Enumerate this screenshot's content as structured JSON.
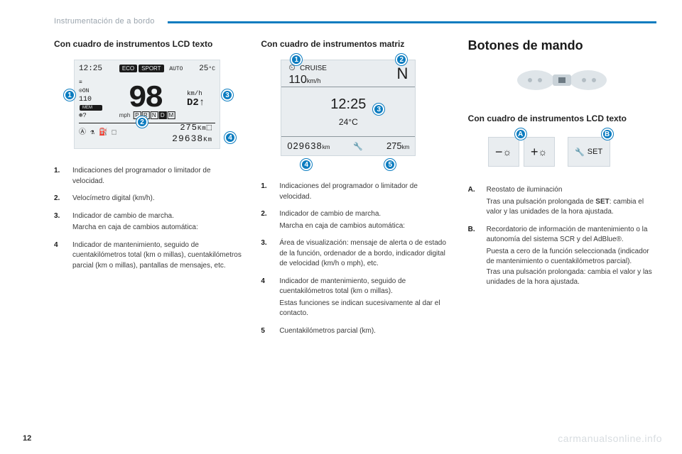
{
  "header": {
    "title": "Instrumentación de a bordo"
  },
  "page_number": "12",
  "watermark": "carmanualsonline.info",
  "col1": {
    "subheading": "Con cuadro de instrumentos LCD texto",
    "lcd": {
      "clock": "12:25",
      "eco": "ECO",
      "sport": "SPORT",
      "auto": "AUTO",
      "temp": "25",
      "temp_unit": "°C",
      "on": "ON",
      "speed": "98",
      "speed_unit1": "km/h",
      "speed_unit2": "mph",
      "mem_speed": "110",
      "mem_label": "MEM",
      "gear_d": "D",
      "gear_num": "2",
      "gear_arrow": "↑",
      "gears": [
        "P",
        "R",
        "N",
        "D",
        "M"
      ],
      "gear_active_index": 3,
      "trip_a": "275",
      "trip_a_unit": "Km",
      "odo": "29638",
      "odo_unit": "Km"
    },
    "items": [
      {
        "n": "1.",
        "text": "Indicaciones del programador o limitador de velocidad."
      },
      {
        "n": "2.",
        "text": "Velocímetro digital (km/h)."
      },
      {
        "n": "3.",
        "text": "Indicador de cambio de marcha.",
        "sub": "Marcha en caja de cambios automática:"
      },
      {
        "n": "4",
        "text": "Indicador de mantenimiento, seguido de cuentakilómetros total (km o millas), cuentakilómetros parcial (km o millas), pantallas de mensajes, etc."
      }
    ]
  },
  "col2": {
    "subheading": "Con cuadro de instrumentos matriz",
    "matrix": {
      "cruise_label": "CRUISE",
      "cruise_value": "110",
      "cruise_unit": "km/h",
      "gear": "N",
      "time": "12:25",
      "temp": "24°C",
      "odo": "029638",
      "odo_unit": "km",
      "trip": "275",
      "trip_unit": "km"
    },
    "items": [
      {
        "n": "1.",
        "text": "Indicaciones del programador o limitador de velocidad."
      },
      {
        "n": "2.",
        "text": "Indicador de cambio de marcha.",
        "sub": "Marcha en caja de cambios automática:"
      },
      {
        "n": "3.",
        "text": "Área de visualización: mensaje de alerta o de estado de la función, ordenador de a bordo, indicador digital de velocidad (km/h o mph), etc."
      },
      {
        "n": "4",
        "text": "Indicador de mantenimiento, seguido de cuentakilómetros total (km o millas).",
        "sub": "Estas funciones se indican sucesivamente al dar el contacto."
      },
      {
        "n": "5",
        "text": "Cuentakilómetros parcial (km)."
      }
    ]
  },
  "col3": {
    "heading": "Botones de mando",
    "subheading": "Con cuadro de instrumentos LCD texto",
    "buttons": {
      "minus": "−",
      "plus": "+",
      "set": "SET"
    },
    "items": [
      {
        "n": "A.",
        "text": "Reostato de iluminación",
        "sub": "Tras una pulsación prolongada de <b>SET</b>: cambia el valor y las unidades de la hora ajustada."
      },
      {
        "n": "B.",
        "text": "Recordatorio de información de mantenimiento o la autonomía del sistema SCR y del AdBlue®.",
        "sub": "Puesta a cero de la función seleccionada (indicador de mantenimiento o cuentakilómetros parcial).<br>Tras una pulsación prolongada: cambia el valor y las unidades de la hora ajustada."
      }
    ]
  },
  "colors": {
    "accent": "#0b7cc0",
    "panel_bg": "#e9edf0",
    "header_text": "#9aa4ad"
  }
}
